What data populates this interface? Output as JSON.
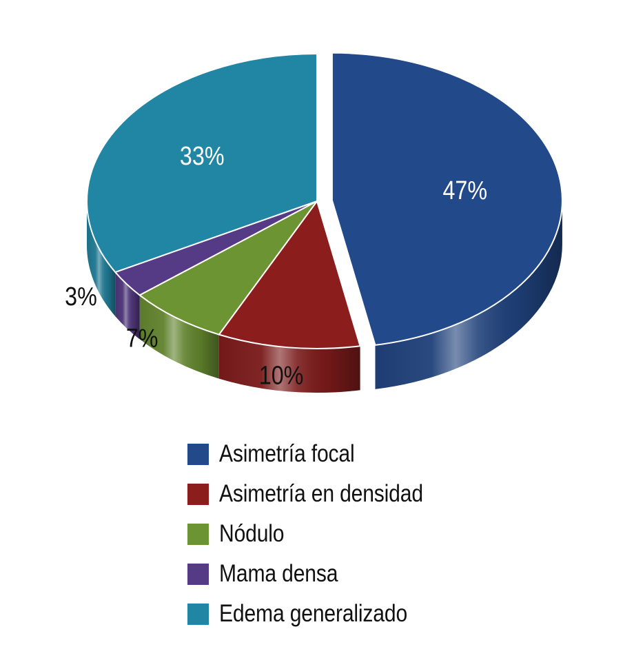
{
  "chart_data": {
    "type": "pie",
    "categories": [
      "Asimetría focal",
      "Asimetría en densidad",
      "Nódulo",
      "Mama densa",
      "Edema generalizado"
    ],
    "values": [
      47,
      10,
      7,
      3,
      33
    ],
    "data_labels": [
      "47%",
      "10%",
      "7%",
      "3%",
      "33%"
    ],
    "colors": [
      "#22498a",
      "#8b1e1d",
      "#6d9433",
      "#553a86",
      "#2186a3"
    ],
    "style": "3d",
    "legend": {
      "position": "bottom"
    }
  }
}
